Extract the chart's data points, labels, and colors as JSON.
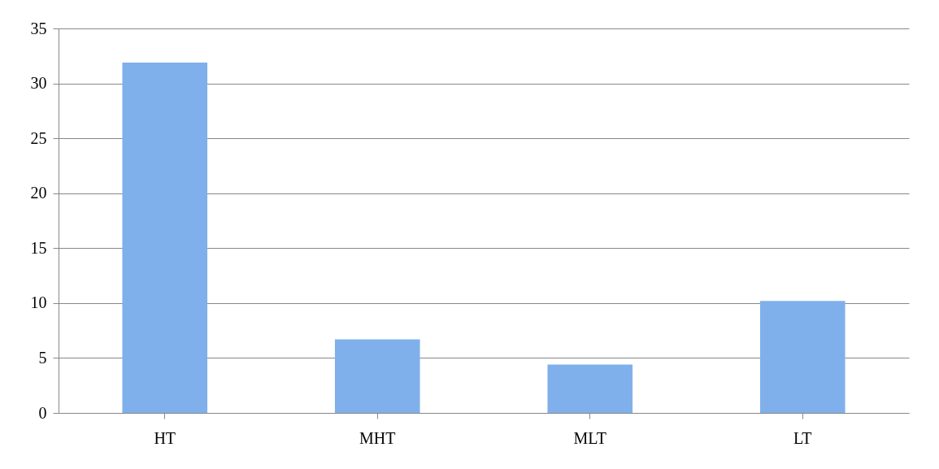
{
  "chart_data": {
    "type": "bar",
    "categories": [
      "HT",
      "MHT",
      "MLT",
      "LT"
    ],
    "values": [
      31.9,
      6.7,
      4.4,
      10.2
    ],
    "color": "#7fb0ec",
    "ylim": [
      0,
      35
    ],
    "yticks": [
      0,
      5,
      10,
      15,
      20,
      25,
      30,
      35
    ],
    "grid": "y"
  }
}
